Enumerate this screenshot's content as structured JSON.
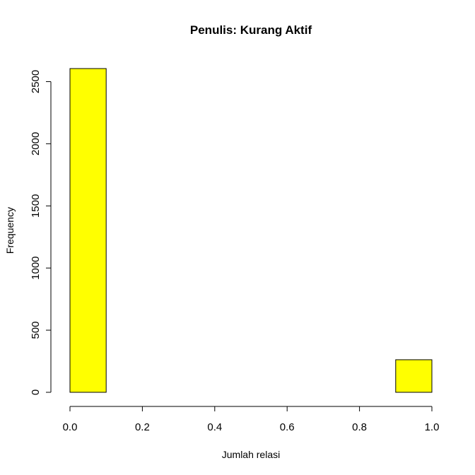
{
  "chart_data": {
    "type": "bar",
    "title": "Penulis: Kurang Aktif",
    "xlabel": "Jumlah relasi",
    "ylabel": "Frequency",
    "bins": [
      [
        0.0,
        0.1
      ],
      [
        0.1,
        0.2
      ],
      [
        0.2,
        0.3
      ],
      [
        0.3,
        0.4
      ],
      [
        0.4,
        0.5
      ],
      [
        0.5,
        0.6
      ],
      [
        0.6,
        0.7
      ],
      [
        0.7,
        0.8
      ],
      [
        0.8,
        0.9
      ],
      [
        0.9,
        1.0
      ]
    ],
    "values": [
      2605,
      0,
      0,
      0,
      0,
      0,
      0,
      0,
      0,
      262
    ],
    "xlim": [
      0.0,
      1.0
    ],
    "ylim": [
      0,
      2605
    ],
    "x_ticks": [
      "0.0",
      "0.2",
      "0.4",
      "0.6",
      "0.8",
      "1.0"
    ],
    "y_ticks": [
      "0",
      "500",
      "1000",
      "1500",
      "2000",
      "2500"
    ],
    "bar_color": "#FFFF00",
    "grid": false
  }
}
